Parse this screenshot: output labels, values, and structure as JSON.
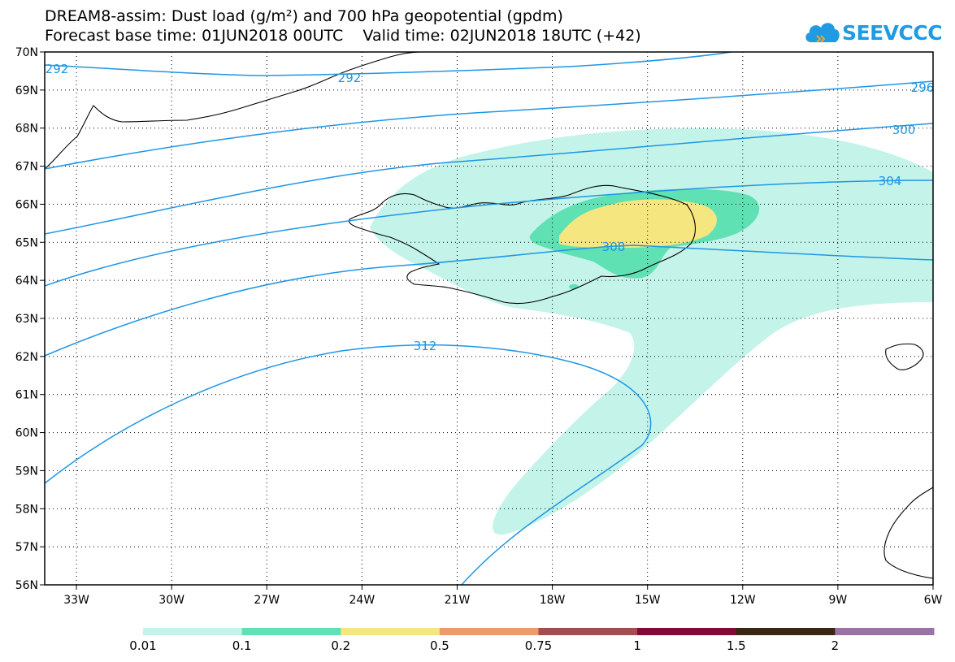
{
  "header": {
    "title_line1": "DREAM8-assim: Dust load (g/m²) and 700 hPa geopotential (gpdm)",
    "title_line2": "Forecast base time: 01JUN2018 00UTC    Valid time: 02JUN2018 18UTC (+42)"
  },
  "logo": {
    "text": "SEEVCCC",
    "icon": "cloud-logo-icon",
    "color": "#1f9be3"
  },
  "map": {
    "lat_labels": [
      "70N",
      "69N",
      "68N",
      "67N",
      "66N",
      "65N",
      "64N",
      "63N",
      "62N",
      "61N",
      "60N",
      "59N",
      "58N",
      "57N",
      "56N"
    ],
    "lon_labels": [
      "33W",
      "30W",
      "27W",
      "24W",
      "21W",
      "18W",
      "15W",
      "12W",
      "9W",
      "6W"
    ],
    "contours": [
      {
        "label": "292"
      },
      {
        "label": "292"
      },
      {
        "label": "296"
      },
      {
        "label": "300"
      },
      {
        "label": "304"
      },
      {
        "label": "308"
      },
      {
        "label": "312"
      }
    ],
    "colors": {
      "contour": "#1e96e6",
      "coast": "#000000",
      "dust_0_01": "#c4f3ea",
      "dust_0_1": "#5fe1b4",
      "dust_0_2": "#f5e680"
    }
  },
  "legend": {
    "colors": [
      "#c4f3ea",
      "#5fe1b4",
      "#f5e680",
      "#ec9a6e",
      "#a14e4e",
      "#820a36",
      "#3a2615",
      "#9b72a6"
    ],
    "labels": [
      "0.01",
      "0.1",
      "0.2",
      "0.5",
      "0.75",
      "1",
      "1.5",
      "2"
    ]
  }
}
